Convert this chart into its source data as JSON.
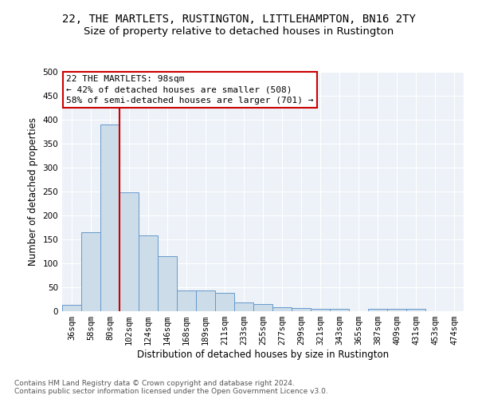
{
  "title": "22, THE MARTLETS, RUSTINGTON, LITTLEHAMPTON, BN16 2TY",
  "subtitle": "Size of property relative to detached houses in Rustington",
  "xlabel": "Distribution of detached houses by size in Rustington",
  "ylabel": "Number of detached properties",
  "categories": [
    "36sqm",
    "58sqm",
    "80sqm",
    "102sqm",
    "124sqm",
    "146sqm",
    "168sqm",
    "189sqm",
    "211sqm",
    "233sqm",
    "255sqm",
    "277sqm",
    "299sqm",
    "321sqm",
    "343sqm",
    "365sqm",
    "387sqm",
    "409sqm",
    "431sqm",
    "453sqm",
    "474sqm"
  ],
  "values": [
    13,
    165,
    390,
    248,
    158,
    115,
    43,
    43,
    38,
    18,
    15,
    8,
    6,
    5,
    5,
    0,
    5,
    5,
    5,
    0,
    0
  ],
  "bar_color": "#ccdce8",
  "bar_edge_color": "#6699cc",
  "vline_color": "#cc0000",
  "annotation_text_line1": "22 THE MARTLETS: 98sqm",
  "annotation_text_line2": "← 42% of detached houses are smaller (508)",
  "annotation_text_line3": "58% of semi-detached houses are larger (701) →",
  "annotation_box_color": "#ffffff",
  "annotation_box_edge_color": "#cc0000",
  "footer_text": "Contains HM Land Registry data © Crown copyright and database right 2024.\nContains public sector information licensed under the Open Government Licence v3.0.",
  "background_color": "#edf2f8",
  "grid_color": "#ffffff",
  "ylim": [
    0,
    500
  ],
  "yticks": [
    0,
    50,
    100,
    150,
    200,
    250,
    300,
    350,
    400,
    450,
    500
  ],
  "title_fontsize": 10,
  "subtitle_fontsize": 9.5,
  "ylabel_fontsize": 8.5,
  "xlabel_fontsize": 8.5,
  "tick_fontsize": 7.5,
  "annotation_fontsize": 8,
  "footer_fontsize": 6.5
}
